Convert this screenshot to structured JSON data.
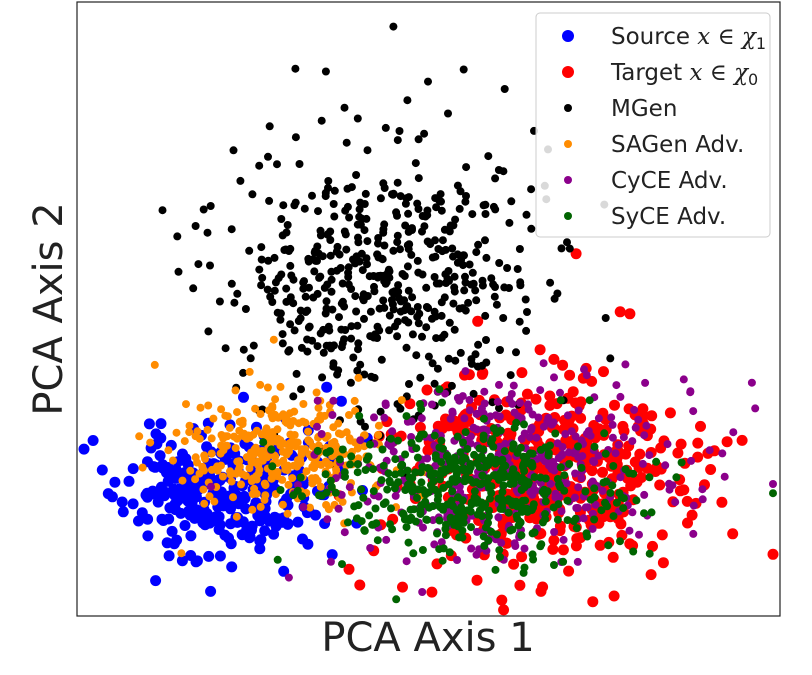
{
  "chart_data": {
    "type": "scatter",
    "title": "",
    "xlabel": "PCA Axis 1",
    "ylabel": "PCA Axis 2",
    "xlim": [
      0,
      100
    ],
    "ylim": [
      0,
      100
    ],
    "ticks": "none",
    "grid": false,
    "legend": {
      "position": "top-right"
    },
    "series": [
      {
        "name": "Source",
        "label_math": "x ∈ χ",
        "label_sub": "1",
        "color": "#0000ff",
        "marker": "large",
        "center": [
          21,
          20
        ],
        "spread": [
          7,
          5
        ],
        "count": 300,
        "seed": 11,
        "points": [
          [
            8,
            24
          ],
          [
            10,
            20
          ],
          [
            12,
            21
          ],
          [
            15,
            9
          ],
          [
            19,
            4
          ],
          [
            22,
            8
          ]
        ]
      },
      {
        "name": "Target",
        "label_math": "x ∈ χ",
        "label_sub": "0",
        "color": "#ff0000",
        "marker": "large",
        "center": [
          66,
          23
        ],
        "spread": [
          10,
          8
        ],
        "count": 420,
        "seed": 23,
        "points": [
          [
            63,
            5
          ],
          [
            66,
            4
          ],
          [
            71,
            59
          ],
          [
            57,
            48
          ]
        ]
      },
      {
        "name": "MGen",
        "label_math": "",
        "label_sub": "",
        "color": "#000000",
        "marker": "small",
        "center": [
          44,
          55
        ],
        "spread": [
          11,
          11
        ],
        "count": 520,
        "seed": 37,
        "points": [
          [
            45,
            96
          ],
          [
            55,
            89
          ],
          [
            47,
            84
          ],
          [
            65,
            79
          ],
          [
            22,
            63
          ],
          [
            75,
            67
          ],
          [
            67,
            76
          ]
        ]
      },
      {
        "name": "SAGen Adv.",
        "label_math": "",
        "label_sub": "",
        "color": "#ff8c00",
        "marker": "small",
        "center": [
          29,
          27
        ],
        "spread": [
          7,
          5
        ],
        "count": 330,
        "seed": 41,
        "points": [
          [
            28,
            45
          ],
          [
            16,
            31
          ],
          [
            13,
            27
          ]
        ]
      },
      {
        "name": "CyCE Adv.",
        "label_math": "",
        "label_sub": "",
        "color": "#8b008b",
        "marker": "small",
        "center": [
          60,
          24
        ],
        "spread": [
          12,
          7
        ],
        "count": 420,
        "seed": 53,
        "points": [
          [
            96,
            38
          ],
          [
            90,
            27
          ],
          [
            89,
            19
          ],
          [
            81,
            31
          ],
          [
            84,
            28
          ]
        ]
      },
      {
        "name": "SyCE Adv.",
        "label_math": "",
        "label_sub": "",
        "color": "#006400",
        "marker": "small",
        "center": [
          56,
          21
        ],
        "spread": [
          11,
          5
        ],
        "count": 450,
        "seed": 67,
        "points": [
          [
            52,
            9
          ],
          [
            86,
            25
          ],
          [
            39,
            26
          ]
        ]
      }
    ]
  }
}
